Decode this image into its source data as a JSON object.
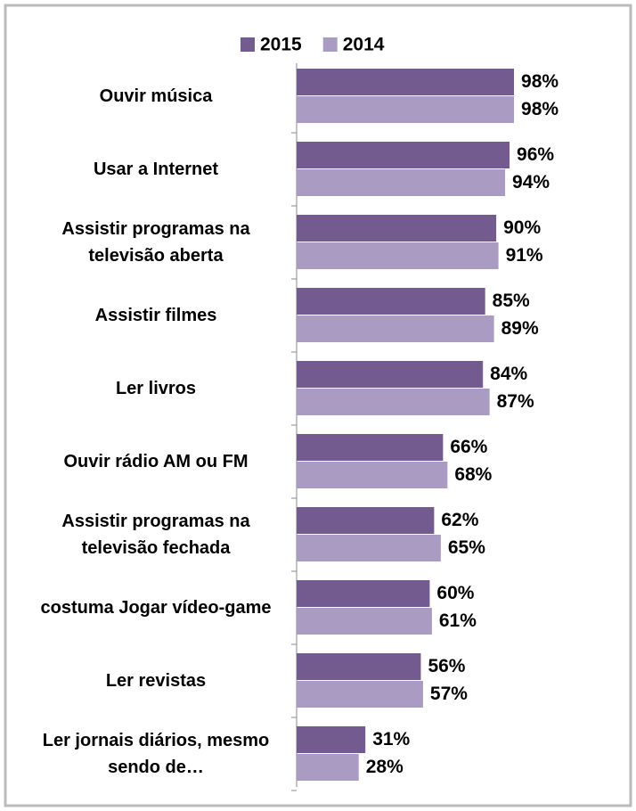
{
  "chart_data": {
    "type": "bar",
    "orientation": "horizontal",
    "categories": [
      "Ouvir música",
      "Usar a Internet",
      "Assistir programas na televisão aberta",
      "Assistir filmes",
      "Ler livros",
      "Ouvir rádio AM ou FM",
      "Assistir programas na televisão fechada",
      "costuma Jogar vídeo-game",
      "Ler revistas",
      "Ler jornais diários, mesmo sendo de…"
    ],
    "series": [
      {
        "name": "2015",
        "color": "#735a8f",
        "values": [
          98,
          96,
          90,
          85,
          84,
          66,
          62,
          60,
          56,
          31
        ],
        "value_labels": [
          "98%",
          "96%",
          "90%",
          "85%",
          "84%",
          "66%",
          "62%",
          "60%",
          "56%",
          "31%"
        ]
      },
      {
        "name": "2014",
        "color": "#a99bc2",
        "values": [
          98,
          94,
          91,
          89,
          87,
          68,
          65,
          61,
          57,
          28
        ],
        "value_labels": [
          "98%",
          "94%",
          "91%",
          "89%",
          "87%",
          "68%",
          "65%",
          "61%",
          "57%",
          "28%"
        ]
      }
    ],
    "xlim": [
      0,
      100
    ],
    "legend": "top"
  }
}
